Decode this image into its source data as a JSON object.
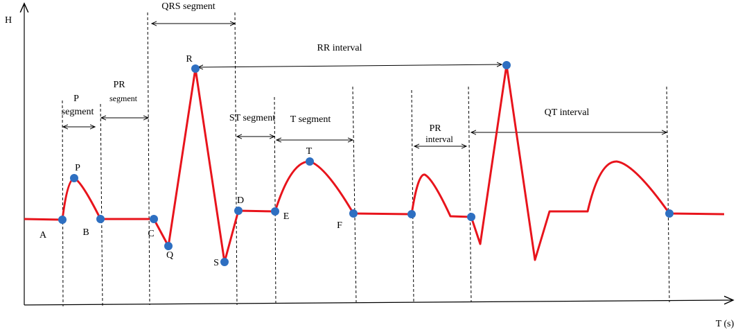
{
  "axes": {
    "y_label": "H",
    "x_label": "T (s)"
  },
  "points": [
    "A",
    "B",
    "C",
    "Q",
    "R",
    "S",
    "D",
    "E",
    "F",
    "P",
    "T"
  ],
  "intervals": [
    {
      "lines": [
        "QRS segment"
      ]
    },
    {
      "lines": [
        "RR  interval"
      ]
    },
    {
      "lines": [
        "P",
        "segment"
      ]
    },
    {
      "lines": [
        "PR",
        "segment"
      ]
    },
    {
      "lines": [
        "ST segment"
      ]
    },
    {
      "lines": [
        "T segment"
      ]
    },
    {
      "lines": [
        "PR",
        "interval"
      ]
    },
    {
      "lines": [
        "QT interval"
      ]
    }
  ]
}
